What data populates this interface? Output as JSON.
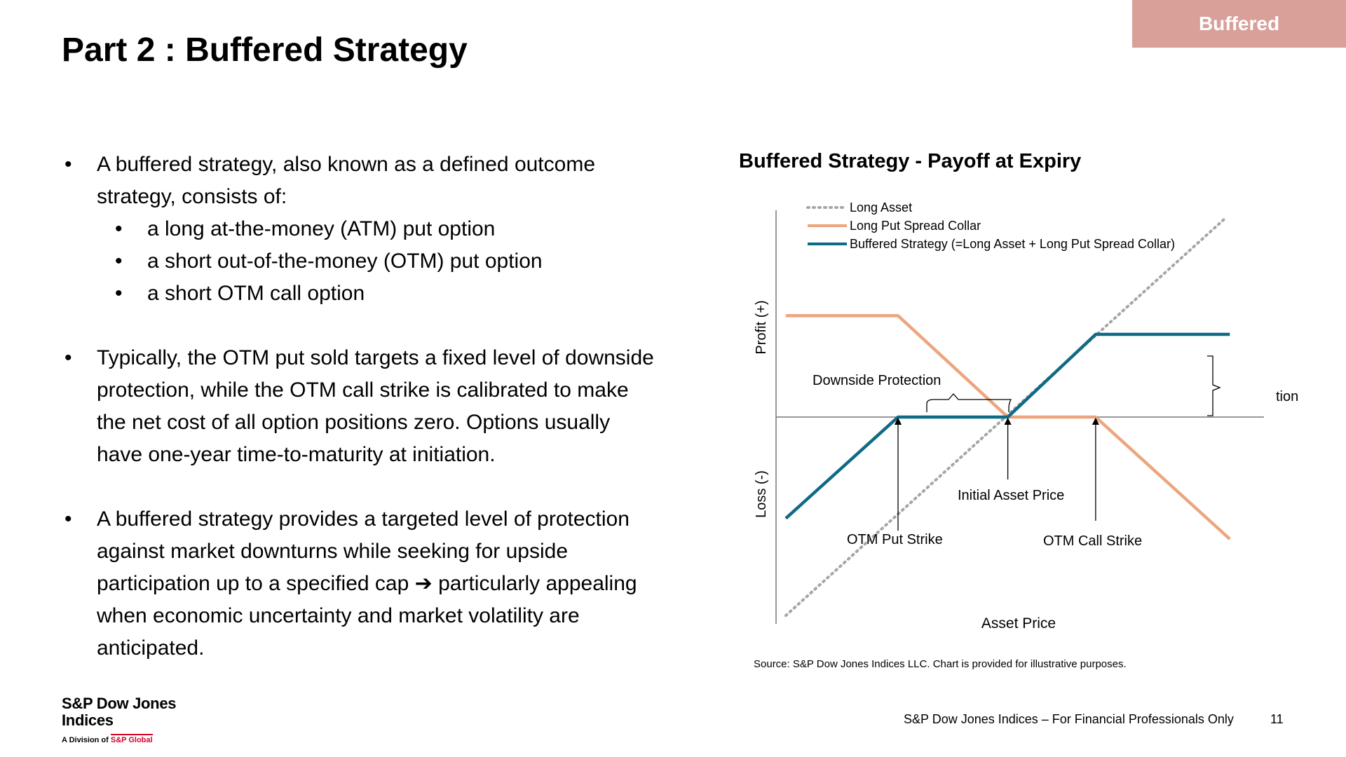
{
  "tag": "Buffered",
  "title": "Part 2 : Buffered Strategy",
  "bullets": {
    "b1_line1": "A buffered strategy, also known as a defined outcome",
    "b1_line2": "strategy, consists of:",
    "sub": [
      "a long at-the-money (ATM) put option",
      "a short out-of-the-money (OTM) put option",
      "a short OTM call option"
    ],
    "b2_lines": [
      "Typically, the OTM put sold targets a fixed level of downside",
      "protection, while the OTM call strike is calibrated to make",
      "the net cost of all option positions zero. Options usually",
      "have one-year time-to-maturity at initiation."
    ],
    "b3_lines": [
      "A buffered strategy provides a targeted level of protection",
      "against market downturns while seeking for upside",
      "participation up to a specified cap ➔ particularly appealing",
      "when economic uncertainty and market volatility are",
      "anticipated."
    ],
    "bullet_char": "•"
  },
  "chart_data": {
    "type": "line",
    "title": "Buffered Strategy - Payoff at Expiry",
    "xlabel": "Asset Price",
    "ylabel_top": "Profit (+)",
    "ylabel_bottom": "Loss (-)",
    "xlim": [
      0,
      10
    ],
    "ylim": [
      -5,
      5
    ],
    "series": [
      {
        "name": "Long Asset",
        "style": "dotted",
        "color": "#a6a6a6",
        "points": [
          [
            0.2,
            -4.8
          ],
          [
            9.2,
            4.8
          ]
        ]
      },
      {
        "name": "Long Put Spread Collar",
        "style": "solid",
        "color": "#eda57e",
        "points": [
          [
            0.2,
            2.45
          ],
          [
            2.5,
            2.45
          ],
          [
            4.75,
            0
          ],
          [
            6.55,
            0
          ],
          [
            9.3,
            -2.95
          ]
        ]
      },
      {
        "name": "Buffered Strategy (=Long Asset + Long Put Spread Collar)",
        "style": "solid",
        "color": "#0f6a85",
        "points": [
          [
            0.2,
            -2.45
          ],
          [
            2.5,
            0
          ],
          [
            4.75,
            0
          ],
          [
            6.55,
            2.0
          ],
          [
            9.3,
            2.0
          ]
        ]
      }
    ],
    "annotations": {
      "downside_protection": "Downside Protection",
      "initial_asset_price": "Initial Asset Price",
      "otm_put_strike": "OTM Put Strike",
      "otm_call_strike": "OTM Call Strike",
      "cut_label": "tion"
    },
    "markers": {
      "otm_put_x": 2.5,
      "initial_x": 4.75,
      "otm_call_x": 6.55
    },
    "legend_position": "top-left",
    "grid": false
  },
  "source": "Source: S&P Dow Jones Indices LLC. Chart is provided for illustrative purposes.",
  "logo": {
    "line1a": "S&P Dow Jones",
    "line1b": "Indices",
    "division": "A Division of ",
    "brand": "S&P Global"
  },
  "footer": "S&P Dow Jones Indices – For Financial Professionals Only",
  "page_number": "11"
}
